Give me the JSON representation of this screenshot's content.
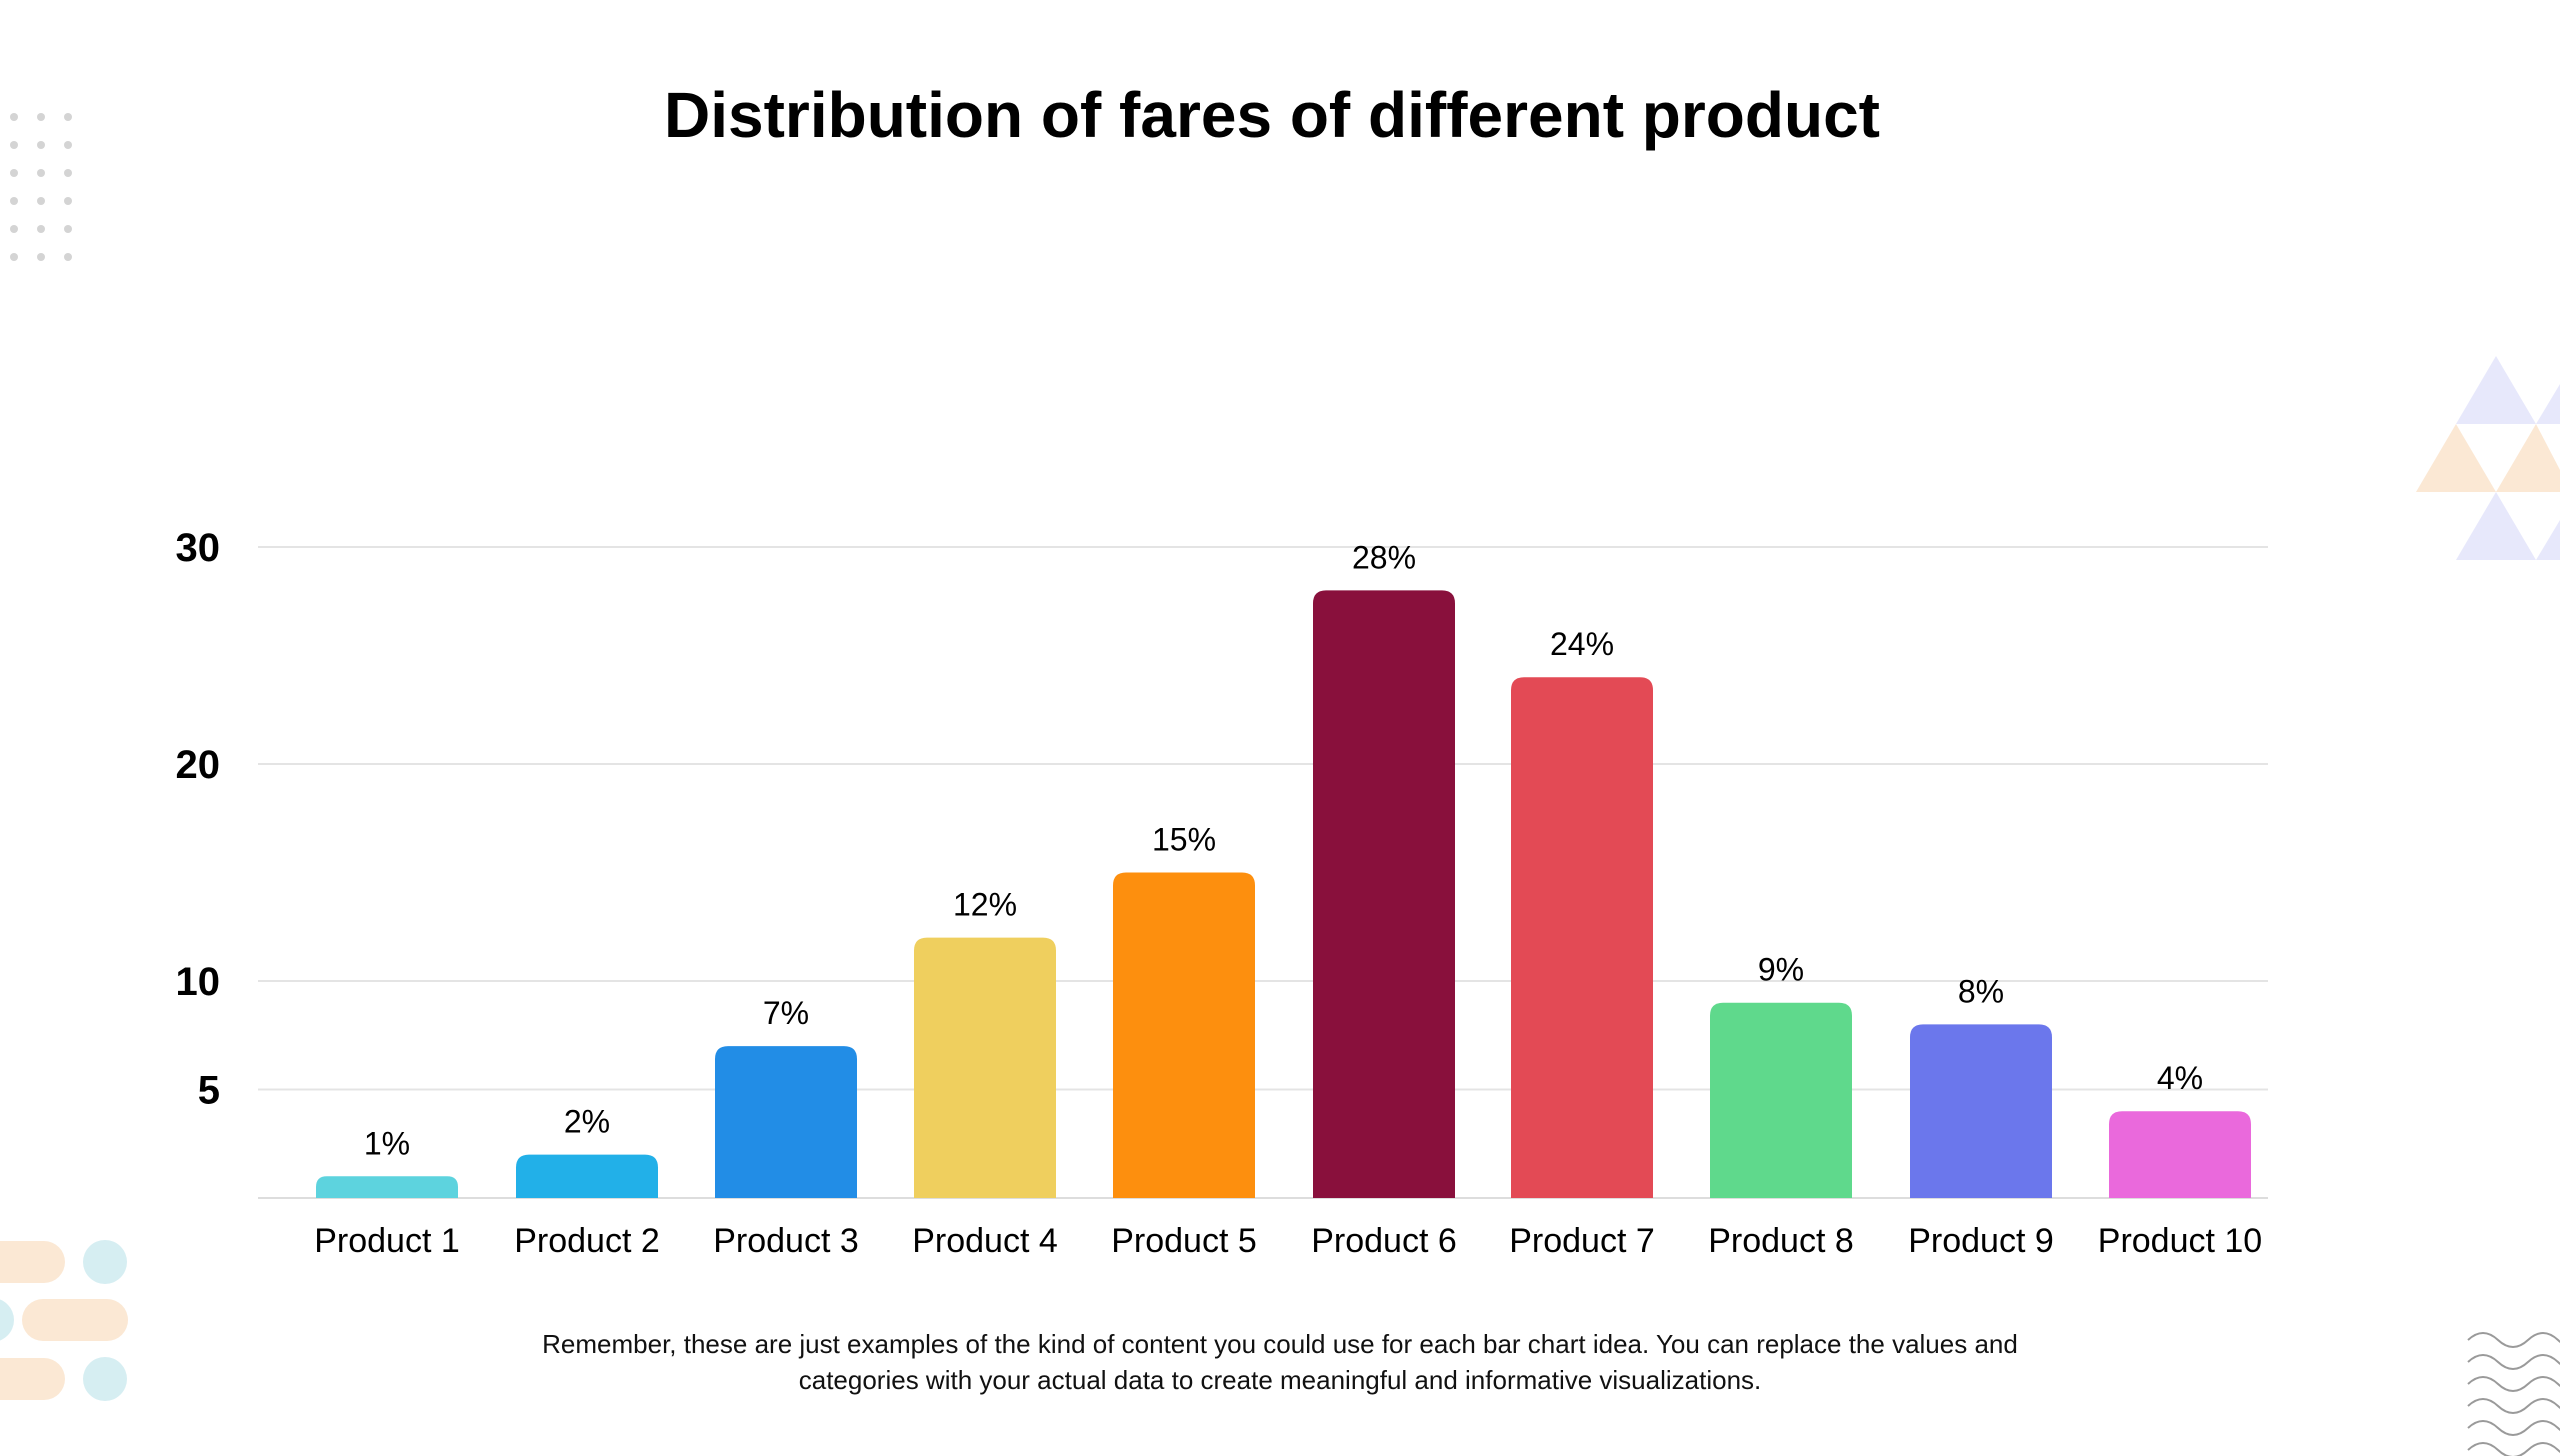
{
  "chart_data": {
    "type": "bar",
    "title": "Distribution of fares of different product",
    "categories": [
      "Product 1",
      "Product 2",
      "Product 3",
      "Product 4",
      "Product 5",
      "Product 6",
      "Product 7",
      "Product 8",
      "Product 9",
      "Product 10"
    ],
    "values": [
      1,
      2,
      7,
      12,
      15,
      28,
      24,
      9,
      8,
      4
    ],
    "data_labels": [
      "1%",
      "2%",
      "7%",
      "12%",
      "15%",
      "28%",
      "24%",
      "9%",
      "8%",
      "4%"
    ],
    "bar_colors": [
      "#5dd3de",
      "#22b0e8",
      "#228de6",
      "#efcf5e",
      "#fd8f0e",
      "#89103c",
      "#e34a55",
      "#5fd98c",
      "#6b77ec",
      "#ea69dc"
    ],
    "y_ticks": [
      "5",
      "10",
      "20",
      "30"
    ],
    "y_tick_values": [
      5,
      10,
      20,
      30
    ],
    "xlabel": "",
    "ylabel": "",
    "ylim": [
      0,
      30
    ],
    "grid": true,
    "legend": "none"
  },
  "footnote": "Remember, these are just examples of the kind of content you could use for each bar chart idea. You can replace the values and categories with your actual data to create meaningful and informative visualizations.",
  "colors": {
    "gridline": "#e4e4e4",
    "baseline": "#dddddd",
    "decor_peach": "#fbe8d4",
    "decor_teal": "#d6eef2",
    "decor_lavender": "#e7e8fb",
    "decor_dots": "#d4d4d4",
    "decor_waves": "#9a9a9a"
  }
}
